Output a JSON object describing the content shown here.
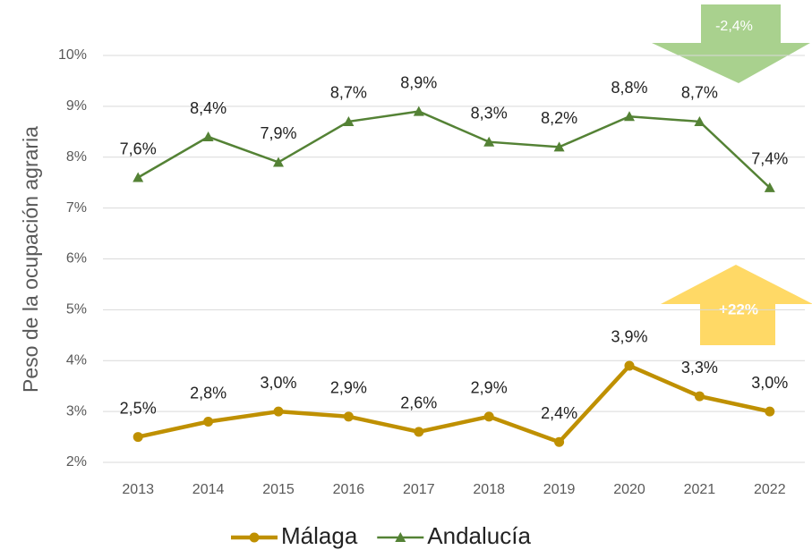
{
  "chart_data": {
    "type": "line",
    "ylabel": "Peso de la ocupación agraria",
    "categories": [
      "2013",
      "2014",
      "2015",
      "2016",
      "2017",
      "2018",
      "2019",
      "2020",
      "2021",
      "2022"
    ],
    "series": [
      {
        "name": "Málaga",
        "color": "#bf9000",
        "marker": "circle",
        "values": [
          2.5,
          2.8,
          3.0,
          2.9,
          2.6,
          2.9,
          2.4,
          3.9,
          3.3,
          3.0
        ],
        "value_labels": [
          "2,5%",
          "2,8%",
          "3,0%",
          "2,9%",
          "2,6%",
          "2,9%",
          "2,4%",
          "3,9%",
          "3,3%",
          "3,0%"
        ]
      },
      {
        "name": "Andalucía",
        "color": "#548235",
        "marker": "triangle",
        "values": [
          7.6,
          8.4,
          7.9,
          8.7,
          8.9,
          8.3,
          8.2,
          8.8,
          8.7,
          7.4
        ],
        "value_labels": [
          "7,6%",
          "8,4%",
          "7,9%",
          "8,7%",
          "8,9%",
          "8,3%",
          "8,2%",
          "8,8%",
          "8,7%",
          "7,4%"
        ]
      }
    ],
    "ylim": [
      2,
      10
    ],
    "yticks": [
      {
        "value": 2,
        "label": "2%"
      },
      {
        "value": 3,
        "label": "3%"
      },
      {
        "value": 4,
        "label": "4%"
      },
      {
        "value": 5,
        "label": "5%"
      },
      {
        "value": 6,
        "label": "6%"
      },
      {
        "value": 7,
        "label": "7%"
      },
      {
        "value": 8,
        "label": "8%"
      },
      {
        "value": 9,
        "label": "9%"
      },
      {
        "value": 10,
        "label": "10%"
      }
    ],
    "grid": true,
    "legend": "bottom",
    "annotations": [
      "-2,4%",
      "+22%"
    ]
  }
}
